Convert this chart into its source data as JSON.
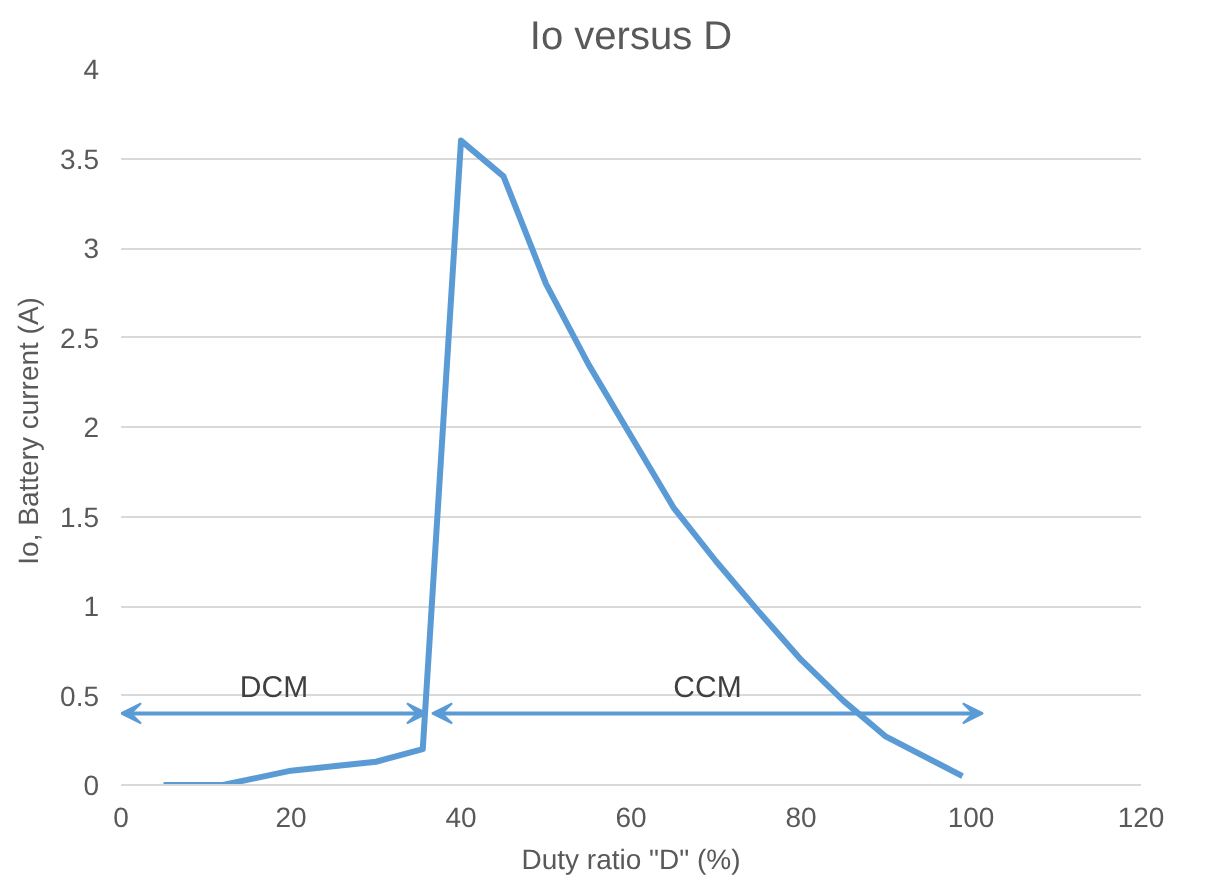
{
  "chart_data": {
    "type": "line",
    "title": "Io versus D",
    "xlabel": "Duty ratio \"D\" (%)",
    "ylabel": "Io, Battery  current (A)",
    "x": [
      5,
      12,
      20,
      30,
      35.5,
      40,
      45,
      50,
      55,
      60,
      65,
      70,
      75,
      80,
      85,
      90,
      99
    ],
    "series": [
      {
        "color": "#5b9bd5",
        "values": [
          0,
          0,
          0.08,
          0.13,
          0.2,
          3.6,
          3.4,
          2.8,
          2.35,
          1.95,
          1.55,
          1.25,
          0.97,
          0.7,
          0.47,
          0.27,
          0.05
        ]
      }
    ],
    "xlim": [
      0,
      120
    ],
    "xticks": [
      0,
      20,
      40,
      60,
      80,
      100,
      120
    ],
    "ylim": [
      0,
      4
    ],
    "yticks": [
      0,
      0.5,
      1,
      1.5,
      2,
      2.5,
      3,
      3.5,
      4
    ],
    "grid": "y",
    "marker": "none",
    "line_style": "solid",
    "annotations": [
      "DCM",
      "CCM"
    ]
  }
}
